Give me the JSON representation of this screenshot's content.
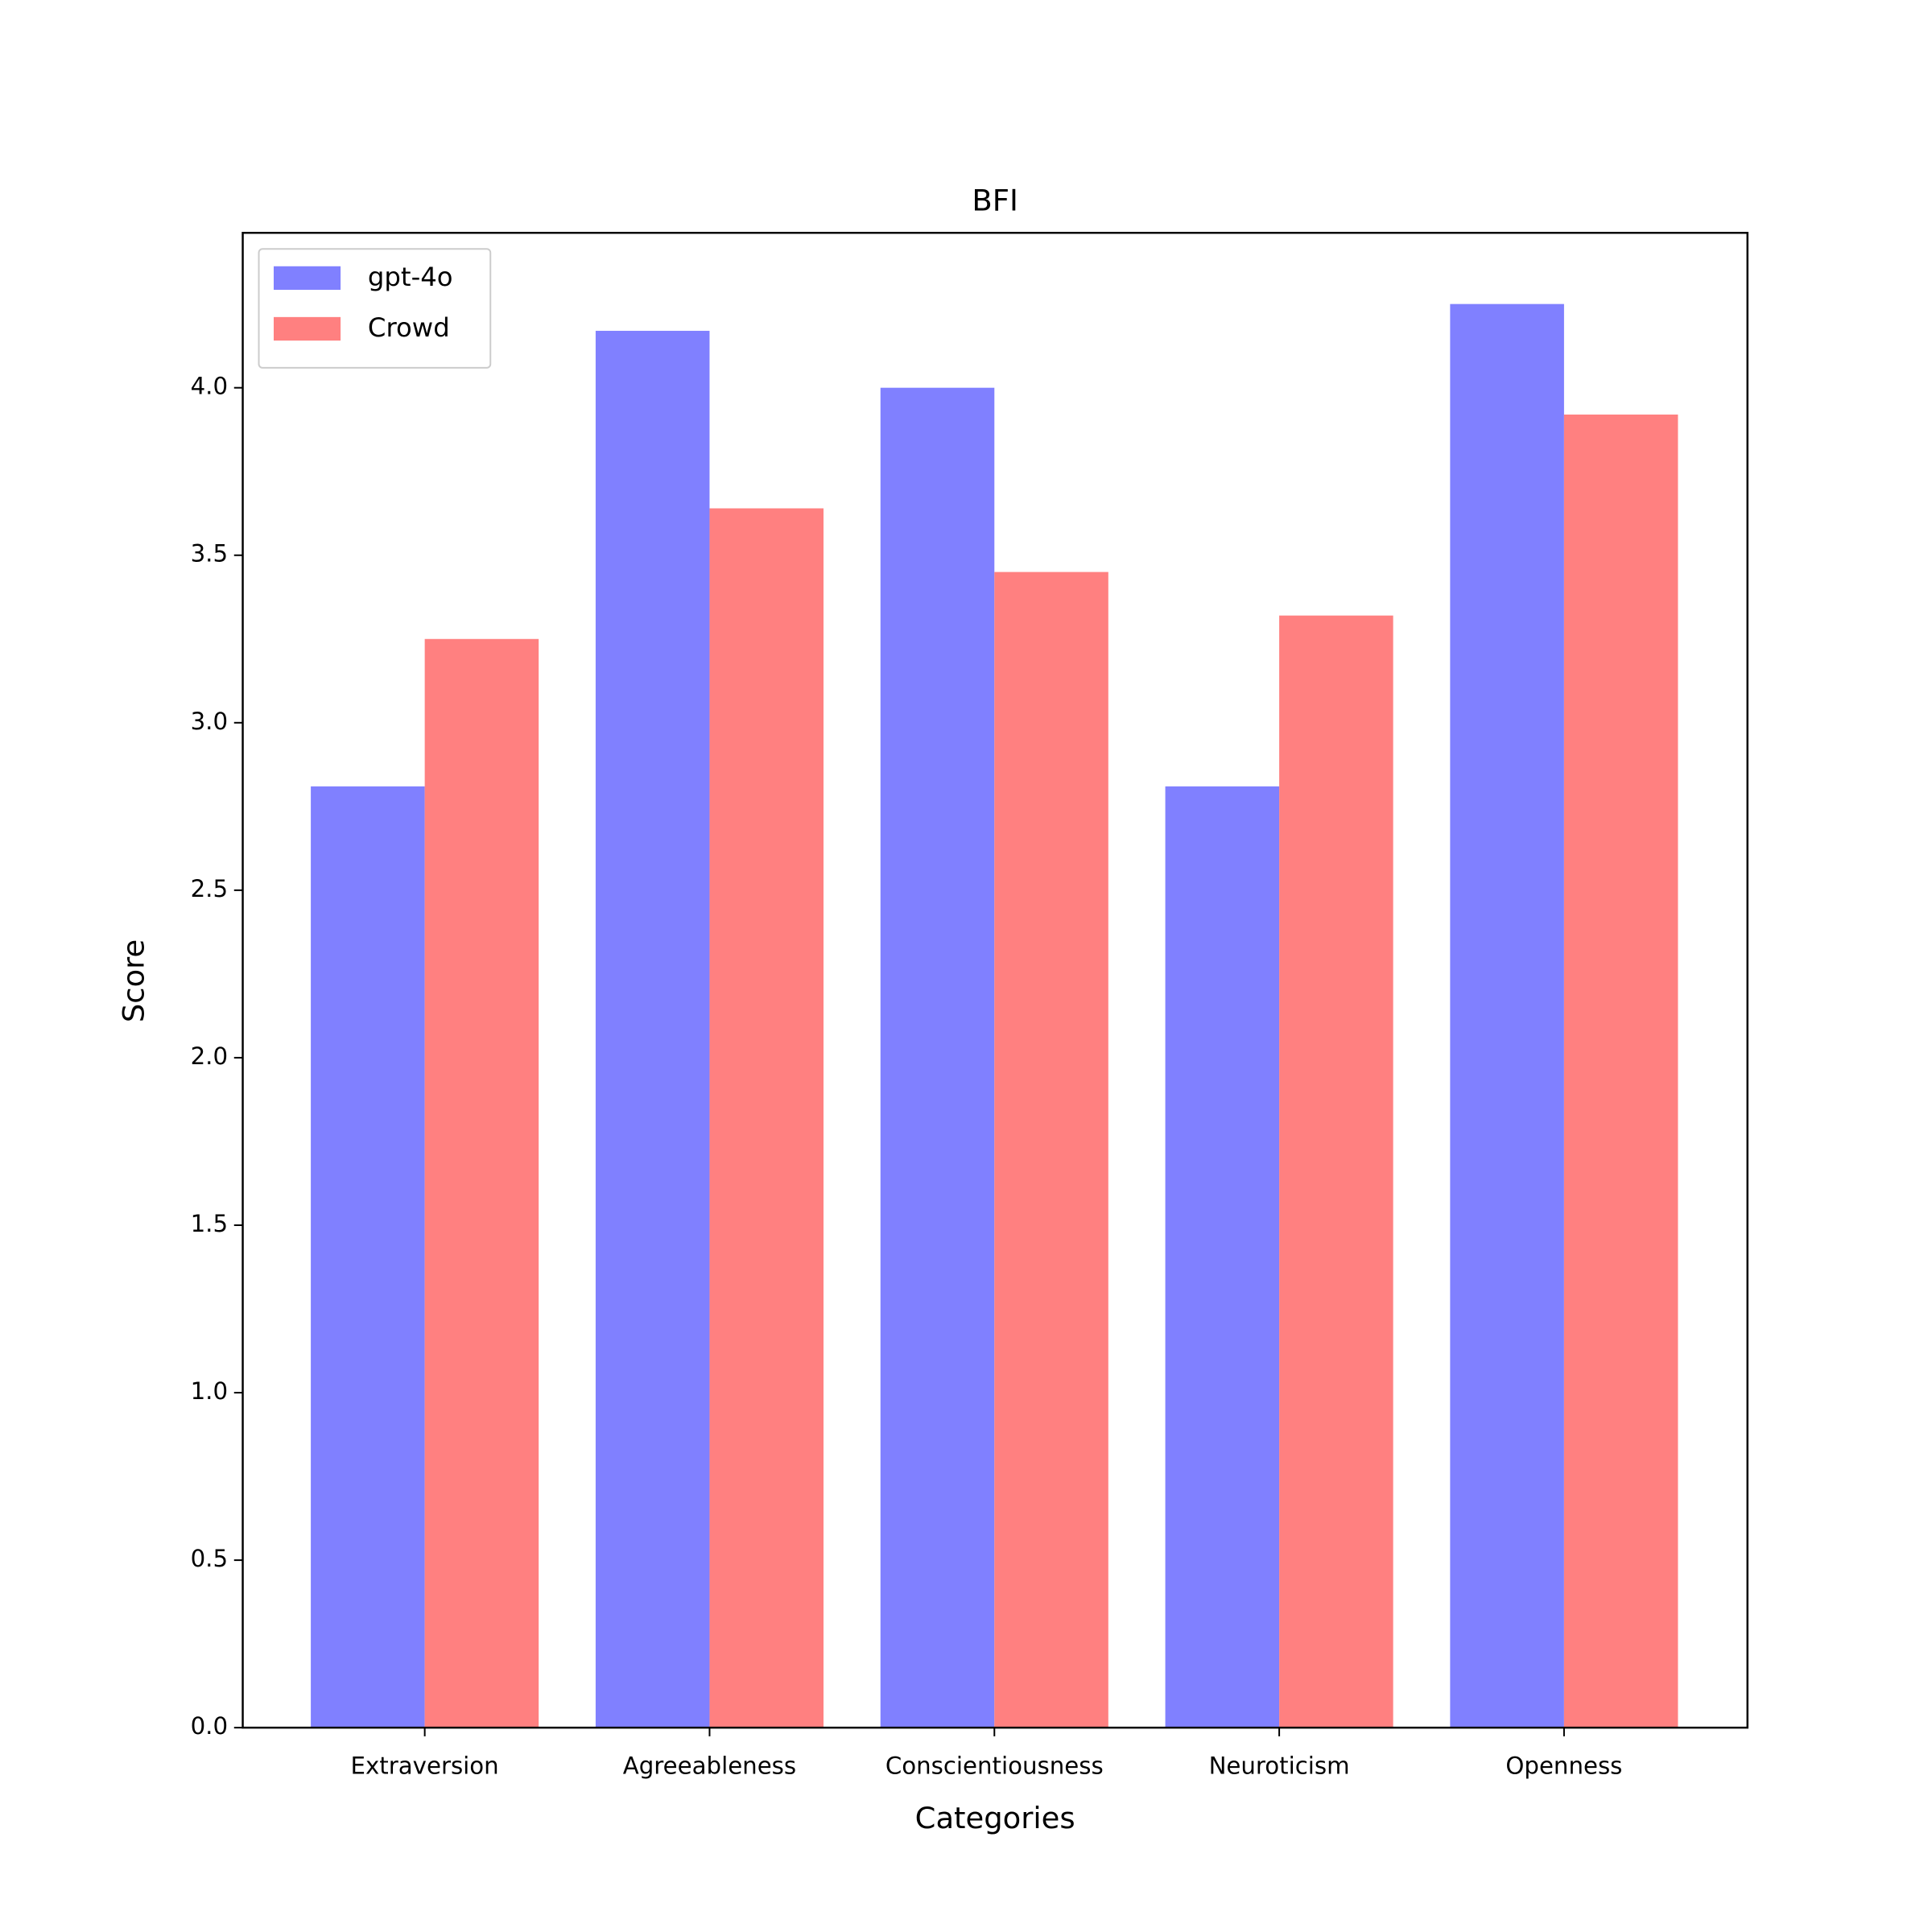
{
  "chart_data": {
    "type": "bar",
    "title": "BFI",
    "x_label": "Categories",
    "y_label": "Score",
    "categories": [
      "Extraversion",
      "Agreeableness",
      "Conscientiousness",
      "Neuroticism",
      "Openness"
    ],
    "series": [
      {
        "name": "gpt-4o",
        "color": "#8080ff",
        "values": [
          2.81,
          4.17,
          4.0,
          2.81,
          4.25
        ]
      },
      {
        "name": "Crowd",
        "color": "#ff8080",
        "values": [
          3.25,
          3.64,
          3.45,
          3.32,
          3.92
        ]
      }
    ],
    "ylim": [
      0,
      4.4625
    ],
    "yticks": [
      {
        "value": 0,
        "label": "0.0"
      },
      0.5,
      {
        "value": 1,
        "label": "1.0"
      },
      1.5,
      {
        "value": 2,
        "label": "2.0"
      },
      2.5,
      {
        "value": 3,
        "label": "3.0"
      },
      3.5,
      {
        "value": 4,
        "label": "4.0"
      }
    ],
    "grid": false,
    "legend": "upper-left"
  }
}
